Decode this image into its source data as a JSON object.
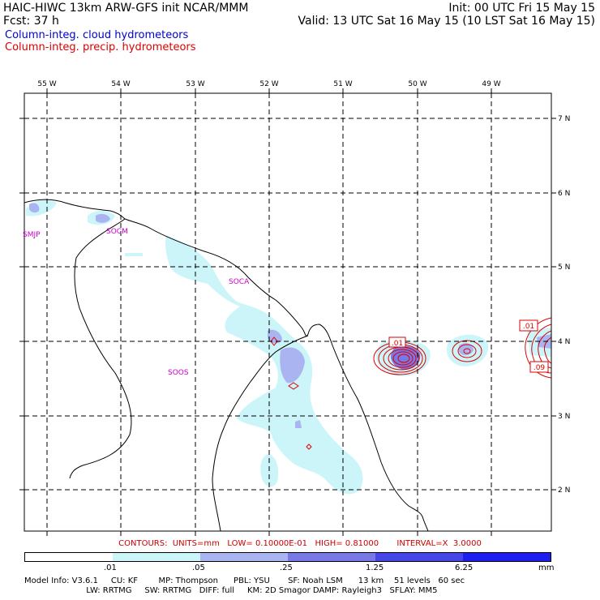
{
  "header": {
    "title": "HAIC-HIWC 13km ARW-GFS init   NCAR/MMM",
    "fcst": "Fcst:   37 h",
    "init": "Init: 00 UTC Fri 15 May 15",
    "valid": "Valid: 13 UTC Sat 16 May 15 (10 LST Sat 16 May 15)"
  },
  "legend": {
    "cloud": "Column-integ. cloud hydrometeors",
    "cloud_color": "#0000cc",
    "precip": "Column-integ. precip. hydrometeors",
    "precip_color": "#dd0000"
  },
  "map": {
    "lon_labels": [
      "55 W",
      "54 W",
      "53 W",
      "52 W",
      "51 W",
      "50 W",
      "49 W"
    ],
    "lat_labels": [
      "7 N",
      "6 N",
      "5 N",
      "4 N",
      "3 N",
      "2 N"
    ],
    "stations": [
      "SMJP",
      "SOCM",
      "SOCA",
      "SOOS"
    ],
    "contour_labels": [
      ".01",
      ".01",
      ".09"
    ]
  },
  "colorbar": {
    "contours_text": "CONTOURS:  UNITS=mm   LOW= 0.10000E-01   HIGH= 0.81000       INTERVAL=X  3.0000",
    "tick_labels": [
      ".01",
      ".05",
      ".25",
      "1.25",
      "6.25",
      "mm"
    ],
    "colors": [
      "#ffffff",
      "#ccf5fa",
      "#aab4f0",
      "#7878e6",
      "#4646e6",
      "#1e1eee"
    ]
  },
  "footer": {
    "line1": "Model Info: V3.6.1     CU: KF        MP: Thompson      PBL: YSU       SF: Noah LSM      13 km    51 levels   60 sec",
    "line2": "                        LW: RRTMG     SW: RRTMG   DIFF: full     KM: 2D Smagor DAMP: Rayleigh3   SFLAY: MM5"
  }
}
